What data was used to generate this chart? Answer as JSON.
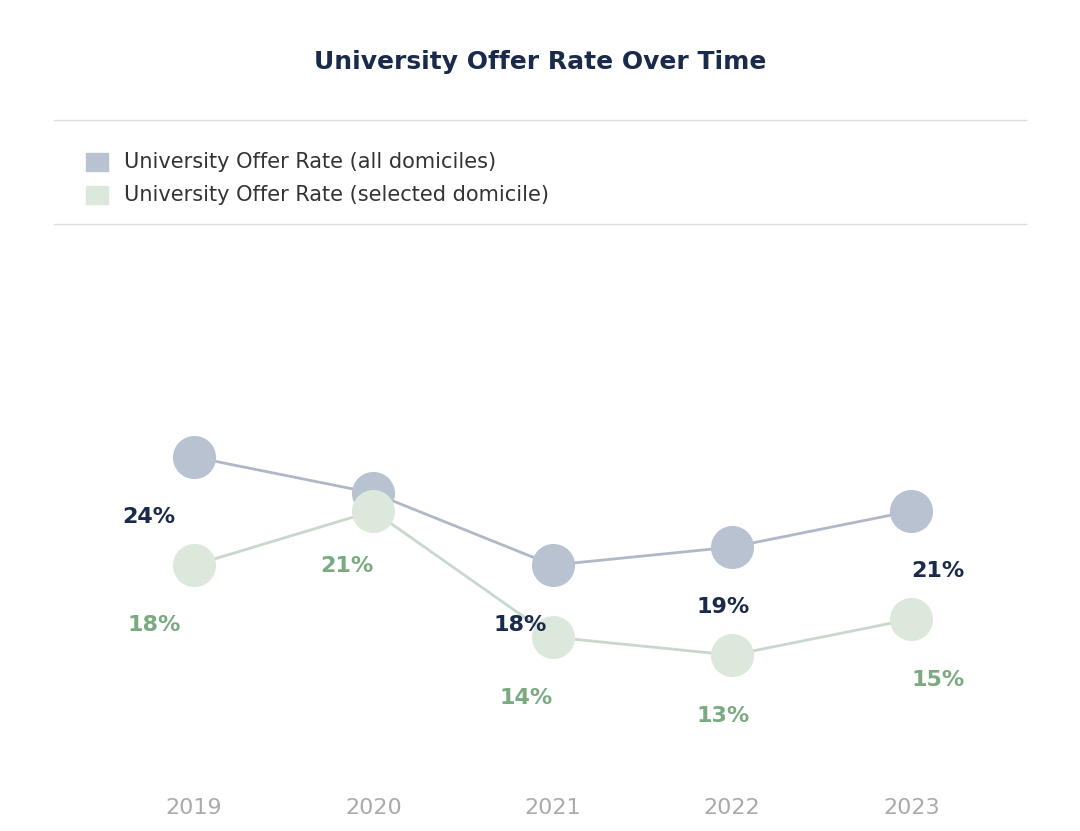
{
  "title": "University Offer Rate Over Time",
  "years": [
    2019,
    2020,
    2021,
    2022,
    2023
  ],
  "all_domiciles": [
    24,
    22,
    18,
    19,
    21
  ],
  "selected_domicile": [
    18,
    21,
    14,
    13,
    15
  ],
  "show_all_labels": [
    true,
    false,
    true,
    true,
    true
  ],
  "show_sel_labels": [
    true,
    true,
    true,
    true,
    true
  ],
  "all_labels": [
    "24%",
    "",
    "18%",
    "19%",
    "21%"
  ],
  "sel_labels": [
    "18%",
    "21%",
    "14%",
    "13%",
    "15%"
  ],
  "line_color_all": "#b0b8c8",
  "line_color_sel": "#c8d8cc",
  "marker_color_all": "#b8c2d0",
  "marker_color_sel": "#dce8dc",
  "label_color_all": "#1a2a4a",
  "label_color_sel": "#7aaa80",
  "legend_label_all": "University Offer Rate (all domiciles)",
  "legend_label_sel": "University Offer Rate (selected domicile)",
  "legend_color_all": "#b8c2d0",
  "legend_color_sel": "#dce8dc",
  "background_color": "#ffffff",
  "separator_color": "#dddddd",
  "title_color": "#1a2a4a",
  "tick_color": "#aaaaaa",
  "title_fontsize": 18,
  "label_fontsize": 16,
  "tick_fontsize": 16,
  "legend_fontsize": 15,
  "marker_size": 30,
  "line_width": 2.0,
  "ylim": [
    6,
    30
  ]
}
